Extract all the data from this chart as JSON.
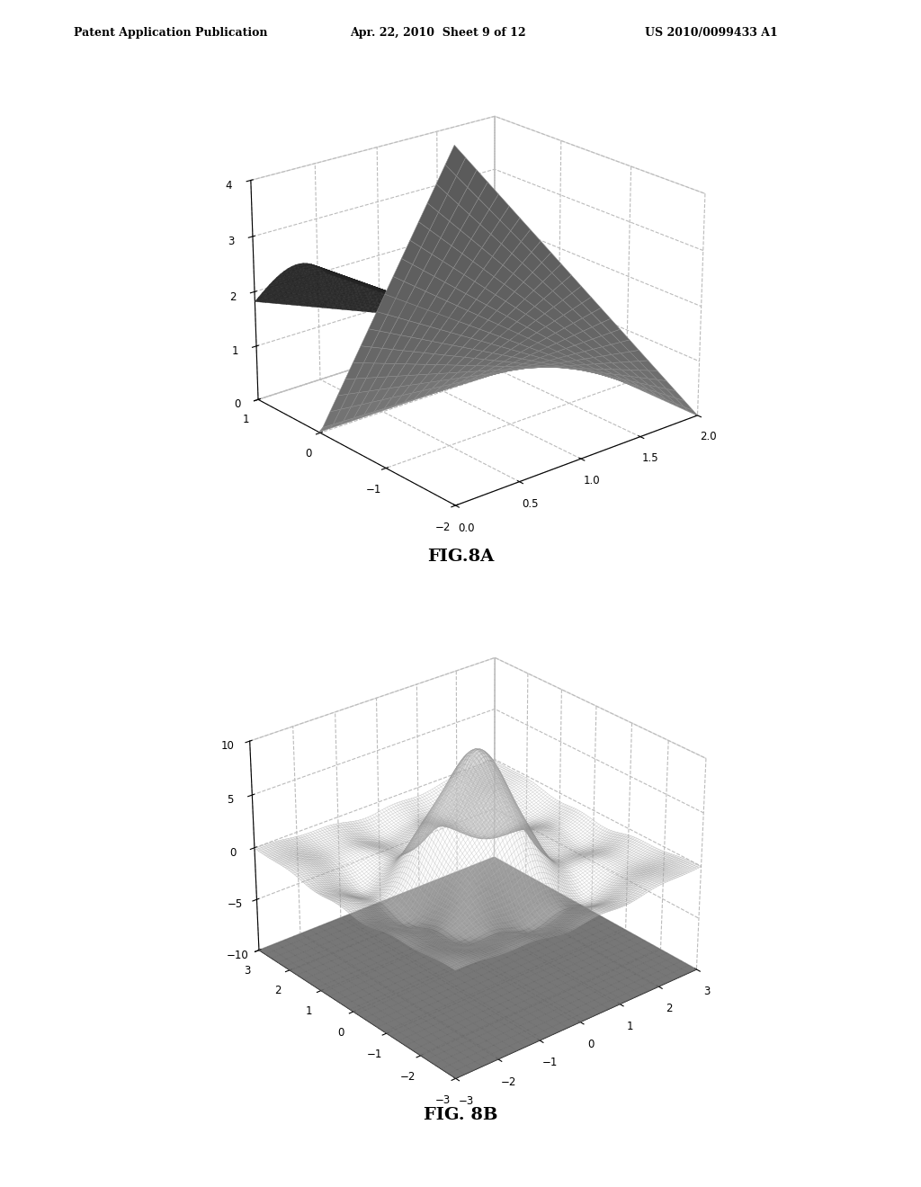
{
  "fig8a_title": "FIG.8A",
  "fig8b_title": "FIG. 8B",
  "header_left": "Patent Application Publication",
  "header_mid": "Apr. 22, 2010  Sheet 9 of 12",
  "header_right": "US 2010/0099433 A1",
  "background_color": "#ffffff",
  "fig8a": {
    "elev": 22,
    "azim": -130,
    "xlim": [
      0,
      2
    ],
    "ylim": [
      -2,
      1
    ],
    "zlim": [
      0,
      4
    ],
    "xticks": [
      0,
      0.5,
      1,
      1.5,
      2
    ],
    "yticks": [
      -2,
      -1,
      0,
      1
    ],
    "zticks": [
      0,
      1,
      2,
      3,
      4
    ]
  },
  "fig8b": {
    "elev": 28,
    "azim": -130,
    "xlim": [
      -3,
      3
    ],
    "ylim": [
      -3,
      3
    ],
    "zlim": [
      -10,
      10
    ],
    "xticks": [
      -3,
      -2,
      -1,
      0,
      1,
      2,
      3
    ],
    "yticks": [
      -3,
      -2,
      -1,
      0,
      1,
      2,
      3
    ],
    "zticks": [
      -10,
      -5,
      0,
      5,
      10
    ]
  }
}
